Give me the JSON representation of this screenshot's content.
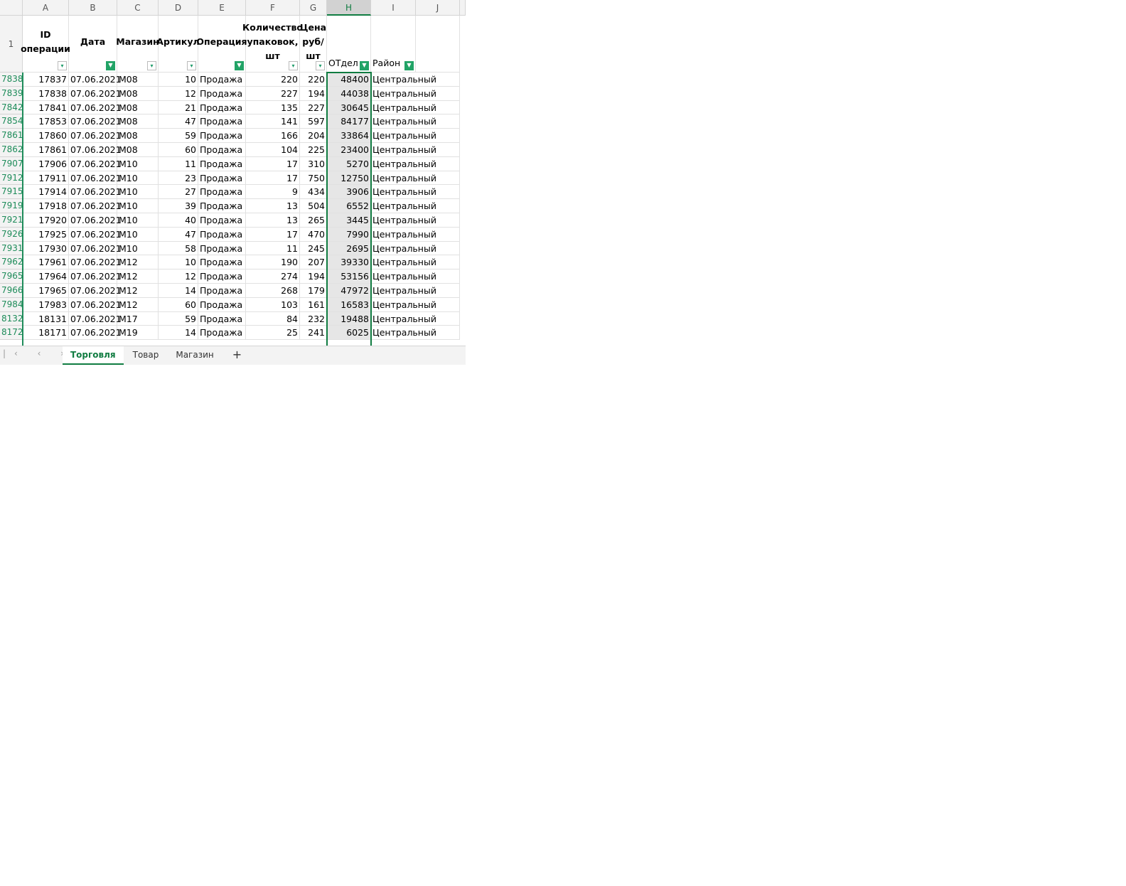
{
  "sheet": {
    "column_letters": [
      "A",
      "B",
      "C",
      "D",
      "E",
      "F",
      "G",
      "H",
      "I",
      "J"
    ],
    "header_row_number": "1",
    "headers": [
      "ID операции",
      "Дата",
      "Магазин",
      "Артикул",
      "Операция",
      "Количество упаковок, шт",
      "Цена руб/шт",
      "ОТдел",
      "Район"
    ],
    "filter_active": [
      false,
      true,
      false,
      false,
      true,
      false,
      false,
      true,
      true
    ],
    "rows": [
      [
        "7838",
        17837,
        "07.06.2021",
        "M08",
        10,
        "Продажа",
        220,
        220,
        48400,
        "Центральный"
      ],
      [
        "7839",
        17838,
        "07.06.2021",
        "M08",
        12,
        "Продажа",
        227,
        194,
        44038,
        "Центральный"
      ],
      [
        "7842",
        17841,
        "07.06.2021",
        "M08",
        21,
        "Продажа",
        135,
        227,
        30645,
        "Центральный"
      ],
      [
        "7854",
        17853,
        "07.06.2021",
        "M08",
        47,
        "Продажа",
        141,
        597,
        84177,
        "Центральный"
      ],
      [
        "7861",
        17860,
        "07.06.2021",
        "M08",
        59,
        "Продажа",
        166,
        204,
        33864,
        "Центральный"
      ],
      [
        "7862",
        17861,
        "07.06.2021",
        "M08",
        60,
        "Продажа",
        104,
        225,
        23400,
        "Центральный"
      ],
      [
        "7907",
        17906,
        "07.06.2021",
        "M10",
        11,
        "Продажа",
        17,
        310,
        5270,
        "Центральный"
      ],
      [
        "7912",
        17911,
        "07.06.2021",
        "M10",
        23,
        "Продажа",
        17,
        750,
        12750,
        "Центральный"
      ],
      [
        "7915",
        17914,
        "07.06.2021",
        "M10",
        27,
        "Продажа",
        9,
        434,
        3906,
        "Центральный"
      ],
      [
        "7919",
        17918,
        "07.06.2021",
        "M10",
        39,
        "Продажа",
        13,
        504,
        6552,
        "Центральный"
      ],
      [
        "7921",
        17920,
        "07.06.2021",
        "M10",
        40,
        "Продажа",
        13,
        265,
        3445,
        "Центральный"
      ],
      [
        "7926",
        17925,
        "07.06.2021",
        "M10",
        47,
        "Продажа",
        17,
        470,
        7990,
        "Центральный"
      ],
      [
        "7931",
        17930,
        "07.06.2021",
        "M10",
        58,
        "Продажа",
        11,
        245,
        2695,
        "Центральный"
      ],
      [
        "7962",
        17961,
        "07.06.2021",
        "M12",
        10,
        "Продажа",
        190,
        207,
        39330,
        "Центральный"
      ],
      [
        "7965",
        17964,
        "07.06.2021",
        "M12",
        12,
        "Продажа",
        274,
        194,
        53156,
        "Центральный"
      ],
      [
        "7966",
        17965,
        "07.06.2021",
        "M12",
        14,
        "Продажа",
        268,
        179,
        47972,
        "Центральный"
      ],
      [
        "7984",
        17983,
        "07.06.2021",
        "M12",
        60,
        "Продажа",
        103,
        161,
        16583,
        "Центральный"
      ],
      [
        "8132",
        18131,
        "07.06.2021",
        "M17",
        59,
        "Продажа",
        84,
        232,
        19488,
        "Центральный"
      ],
      [
        "8172",
        18171,
        "07.06.2021",
        "M19",
        14,
        "Продажа",
        25,
        241,
        6025,
        "Центральный"
      ]
    ]
  },
  "tabs": [
    "Торговля",
    "Товар",
    "Магазин"
  ]
}
